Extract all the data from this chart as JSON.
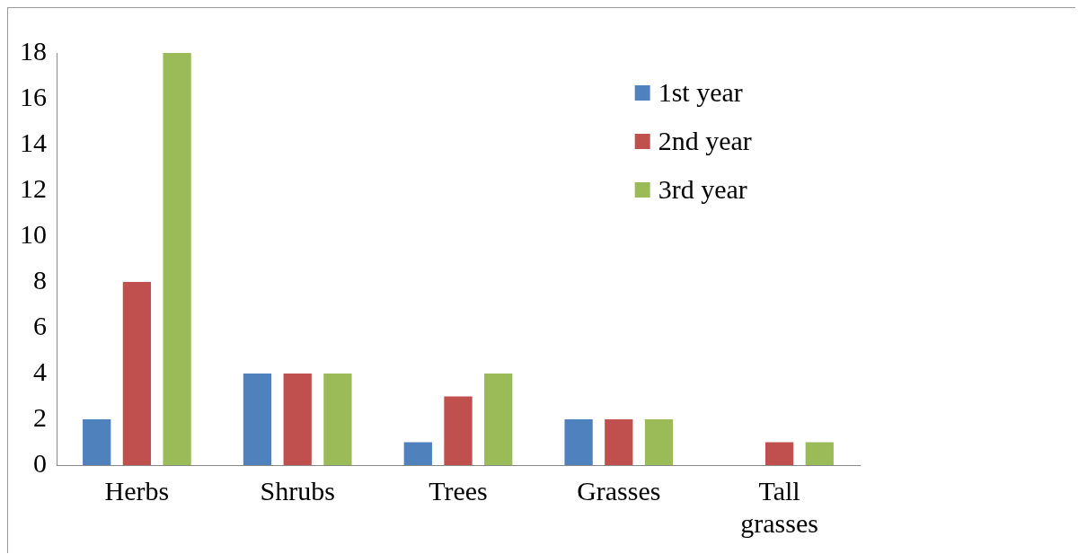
{
  "chart_data": {
    "type": "bar",
    "categories": [
      "Herbs",
      "Shrubs",
      "Trees",
      "Grasses",
      "Tall grasses"
    ],
    "series": [
      {
        "name": "1st year",
        "color": "#4f81bd",
        "values": [
          2,
          4,
          1,
          2,
          0
        ]
      },
      {
        "name": "2nd year",
        "color": "#c0504d",
        "values": [
          8,
          4,
          3,
          2,
          1
        ]
      },
      {
        "name": "3rd year",
        "color": "#9bbb59",
        "values": [
          18,
          4,
          4,
          2,
          1
        ]
      }
    ],
    "ylim": [
      0,
      18
    ],
    "yticks": [
      0,
      2,
      4,
      6,
      8,
      10,
      12,
      14,
      16,
      18
    ],
    "grid": false,
    "legend": "top right"
  }
}
